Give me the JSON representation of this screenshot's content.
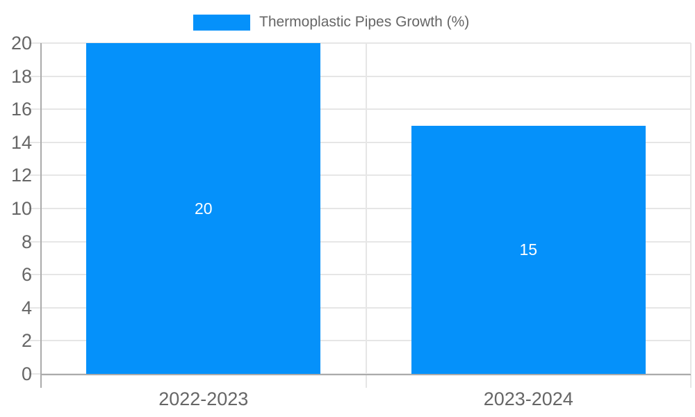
{
  "chart_data": {
    "type": "bar",
    "title": "",
    "legend": {
      "position": "top",
      "label": "Thermoplastic Pipes Growth (%)"
    },
    "categories": [
      "2022-2023",
      "2023-2024"
    ],
    "values": [
      20,
      15
    ],
    "value_labels": [
      "20",
      "15"
    ],
    "ylim": [
      0,
      20
    ],
    "yticks": [
      0,
      2,
      4,
      6,
      8,
      10,
      12,
      14,
      16,
      18,
      20
    ],
    "grid": true,
    "colors": {
      "bar": "#0591FA",
      "grid": "#E6E6E6",
      "axis": "#ABABAB",
      "tick_text": "#666666",
      "legend_text": "#666666",
      "value_label_text": "#FFFFFF"
    }
  }
}
